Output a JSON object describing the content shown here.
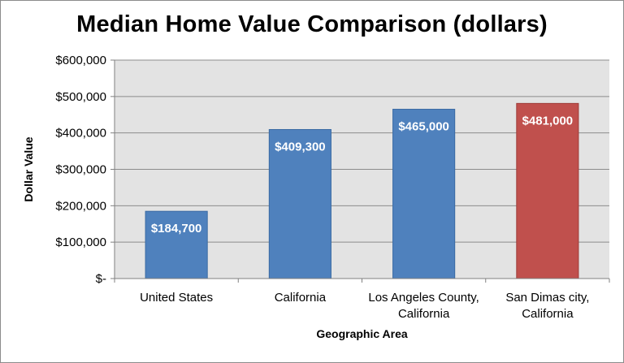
{
  "chart_data": {
    "type": "bar",
    "title": "Median Home Value Comparison (dollars)",
    "xlabel": "Geographic Area",
    "ylabel": "Dollar Value",
    "ylim": [
      0,
      600000
    ],
    "grid": true,
    "legend": "none",
    "y_ticks": [
      0,
      100000,
      200000,
      300000,
      400000,
      500000,
      600000
    ],
    "y_tick_labels": [
      "$-",
      "$100,000",
      "$200,000",
      "$300,000",
      "$400,000",
      "$500,000",
      "$600,000"
    ],
    "categories": [
      [
        "United States"
      ],
      [
        "California"
      ],
      [
        "Los Angeles County,",
        "California"
      ],
      [
        "San Dimas city,",
        "California"
      ]
    ],
    "values": [
      184700,
      409300,
      465000,
      481000
    ],
    "data_labels": [
      "$184,700",
      "$409,300",
      "$465,000",
      "$481,000"
    ],
    "bar_colors": [
      "#4f81bd",
      "#4f81bd",
      "#4f81bd",
      "#c0504d"
    ],
    "bar_border_colors": [
      "#3a6aa3",
      "#3a6aa3",
      "#3a6aa3",
      "#9e3b38"
    ],
    "plot_background": "#e3e3e3",
    "gridline_color": "#8c8c8c"
  }
}
